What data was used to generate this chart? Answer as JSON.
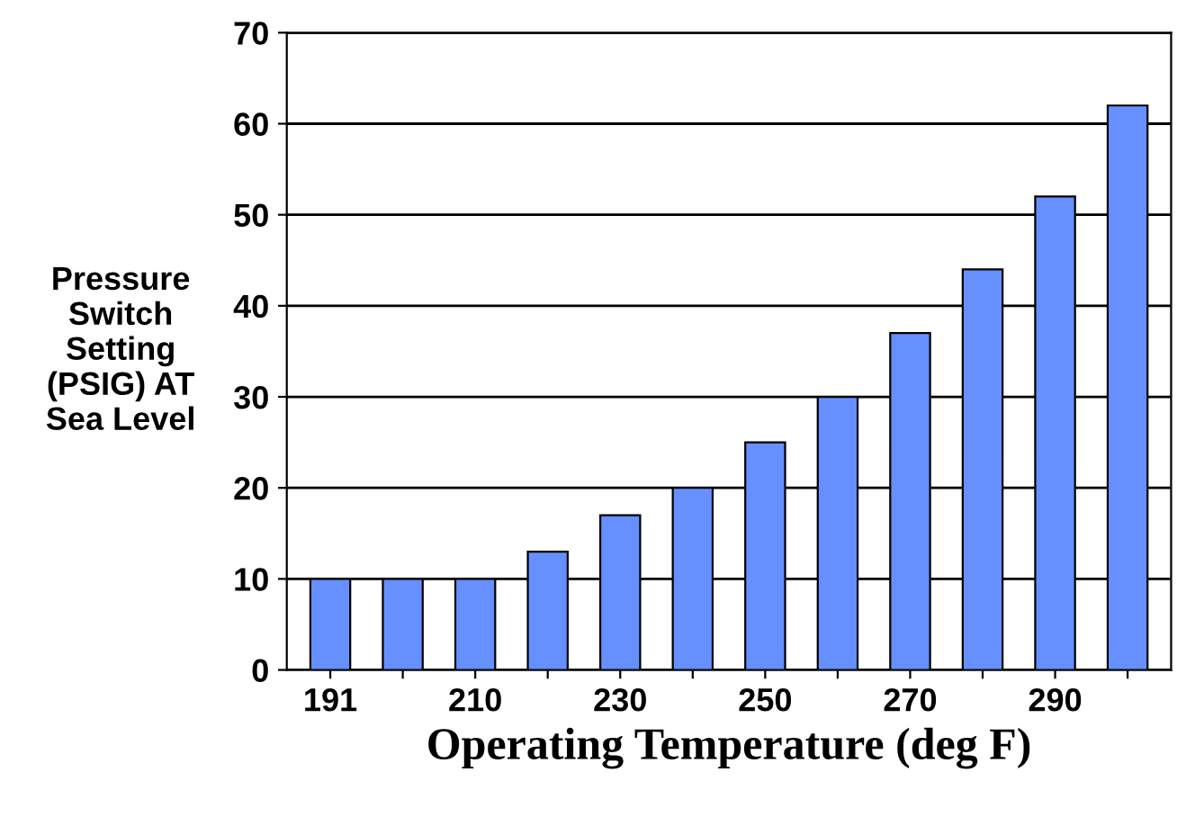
{
  "chart_data": {
    "type": "bar",
    "xlabel": "Operating Temperature (deg F)",
    "ylabel": "Pressure\nSwitch\nSetting\n(PSIG) AT\nSea Level",
    "categories": [
      "191",
      null,
      "210",
      null,
      "230",
      null,
      "250",
      null,
      "270",
      null,
      "290",
      null
    ],
    "values": [
      10,
      10,
      10,
      13,
      17,
      20,
      25,
      30,
      37,
      44,
      52,
      62
    ],
    "color": "#6690ff",
    "ylim": [
      0,
      70
    ],
    "yticks": [
      0,
      10,
      20,
      30,
      40,
      50,
      60,
      70
    ],
    "grid": "y"
  }
}
